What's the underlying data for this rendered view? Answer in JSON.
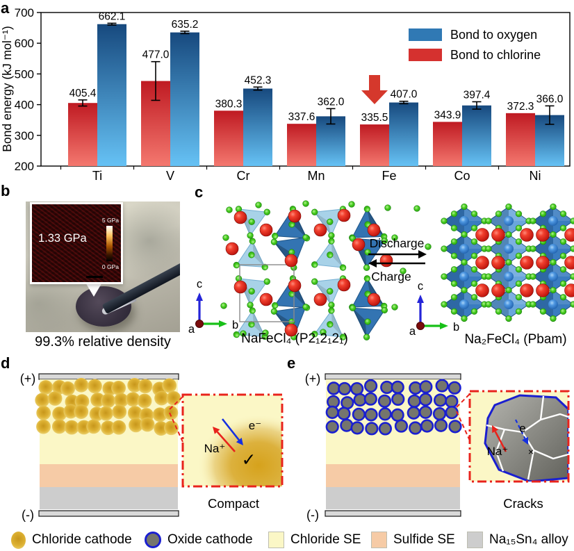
{
  "panels": {
    "a": "a",
    "b": "b",
    "c": "c",
    "d": "d",
    "e": "e"
  },
  "chart_data": {
    "type": "bar",
    "title": "",
    "categories": [
      "Ti",
      "V",
      "Cr",
      "Mn",
      "Fe",
      "Co",
      "Ni"
    ],
    "series": [
      {
        "name": "Bond to oxygen",
        "legend_color": "#3079b4",
        "color_top": "#17497e",
        "color_bottom": "#66c2f5",
        "values": [
          662.1,
          635.2,
          452.3,
          362.0,
          407.0,
          397.4,
          366.0
        ],
        "value_labels": [
          "662.1",
          "635.2",
          "452.3",
          "362.0",
          "407.0",
          "397.4",
          "366.0"
        ],
        "errors": [
          3,
          4,
          5,
          25,
          4,
          12,
          30
        ]
      },
      {
        "name": "Bond to chlorine",
        "legend_color": "#d5312f",
        "color_top": "#bf1a22",
        "color_bottom": "#f4786f",
        "values": [
          405.4,
          477.0,
          380.3,
          337.6,
          335.5,
          343.9,
          372.3
        ],
        "value_labels": [
          "405.4",
          "477.0",
          "380.3",
          "337.6",
          "335.5",
          "343.9",
          "372.3"
        ],
        "errors": [
          10,
          63,
          0,
          0,
          0,
          0,
          0
        ]
      }
    ],
    "ylabel": "Bond energy (kJ mol⁻¹)",
    "ylim": [
      200,
      700
    ],
    "yticks": [
      200,
      300,
      400,
      500,
      600,
      700
    ],
    "legend_position": "top-right",
    "annotation": {
      "type": "red-down-arrow",
      "category": "Fe",
      "series": "Bond to chlorine"
    }
  },
  "panel_b": {
    "modulus": "1.33 GPa",
    "scale_top": "5 GPa",
    "scale_bottom": "0 GPa",
    "caption": "99.3% relative density"
  },
  "panel_c": {
    "left_label": "NaFeCl₄ (P2₁2₁2₁)",
    "right_label": "Na₂FeCl₄ (Pbam)",
    "forward": "Discharge",
    "backward": "Charge",
    "axes": {
      "a": "a",
      "b": "b",
      "c": "c"
    },
    "colors": {
      "na_sphere": "#dd1512",
      "cl_sphere": "#3fc81e",
      "fe_sphere": "#2f79c8",
      "poly_dark": "#3a7cc0",
      "poly_light": "#a8d2e8"
    }
  },
  "panel_d": {
    "positive": "(+)",
    "negative": "(-)",
    "ion": "Na⁺",
    "electron": "e⁻",
    "check": "✓",
    "label": "Compact"
  },
  "panel_e": {
    "positive": "(+)",
    "negative": "(-)",
    "ion": "Na⁺",
    "electron": "e",
    "blocked": "×",
    "label": "Cracks"
  },
  "legend": [
    {
      "label": "Chloride cathode",
      "swatch": "yellow-sphere",
      "color": "#ddb133"
    },
    {
      "label": "Oxide cathode",
      "swatch": "blue-ring-sphere",
      "color": "#75756d",
      "ring": "#1a1fd0"
    },
    {
      "label": "Chloride SE",
      "swatch": "square",
      "color": "#fbf7c6"
    },
    {
      "label": "Sulfide SE",
      "swatch": "square",
      "color": "#f6cba6"
    },
    {
      "label": "Na₁₅Sn₄ alloy",
      "swatch": "square",
      "color": "#cdcdcd"
    }
  ],
  "layers": {
    "chloride_se": "#fbf7c6",
    "sulfide_se": "#f6cba6",
    "alloy": "#cdcdcd",
    "electrode": "#d9d9d9"
  }
}
